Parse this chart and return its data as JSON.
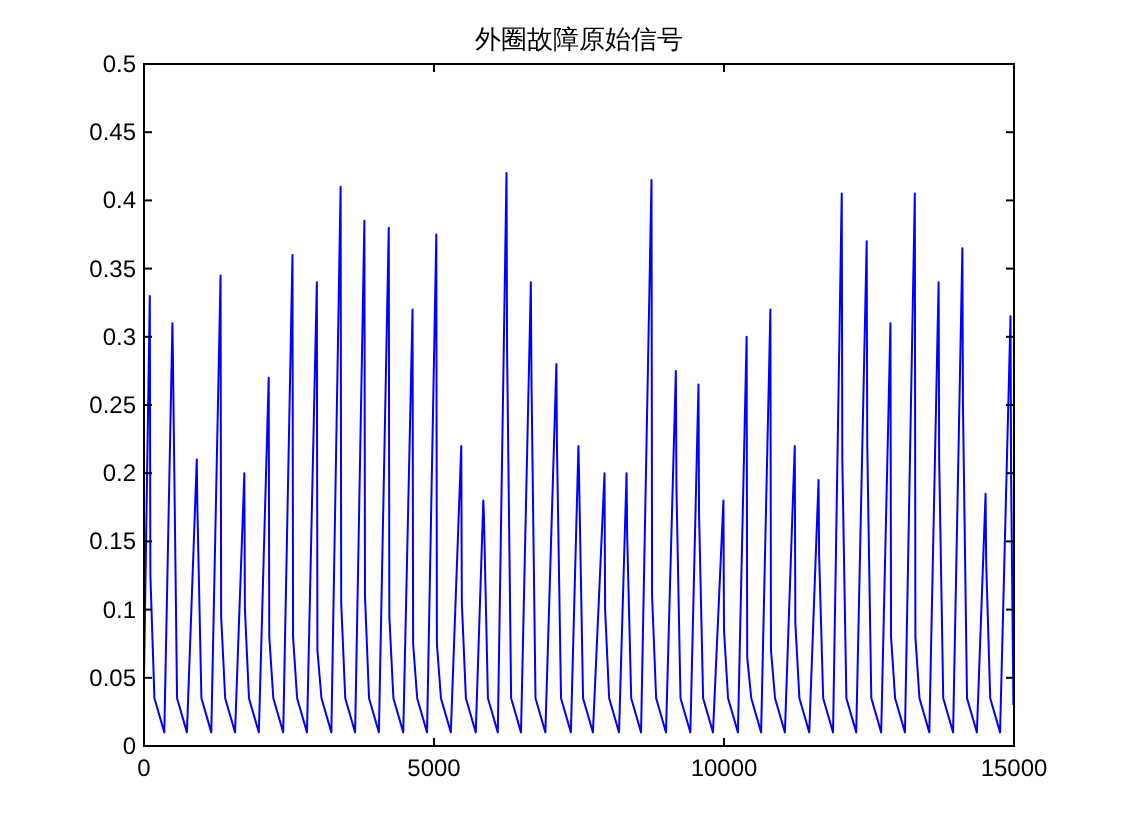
{
  "chart_data": {
    "type": "line",
    "title": "外圈故障原始信号",
    "x": [
      0,
      100,
      110,
      180,
      350,
      490,
      500,
      570,
      740,
      910,
      920,
      990,
      1160,
      1320,
      1330,
      1400,
      1570,
      1730,
      1740,
      1810,
      1980,
      2150,
      2160,
      2230,
      2400,
      2560,
      2570,
      2640,
      2810,
      2980,
      2990,
      3060,
      3230,
      3390,
      3400,
      3470,
      3640,
      3800,
      3810,
      3880,
      4050,
      4220,
      4230,
      4300,
      4470,
      4630,
      4640,
      4710,
      4880,
      5040,
      5050,
      5120,
      5290,
      5470,
      5480,
      5550,
      5720,
      5850,
      5860,
      5930,
      6100,
      6250,
      6260,
      6330,
      6500,
      6670,
      6680,
      6750,
      6920,
      7110,
      7120,
      7190,
      7360,
      7490,
      7500,
      7570,
      7740,
      7940,
      7950,
      8020,
      8190,
      8320,
      8330,
      8400,
      8570,
      8750,
      8760,
      8830,
      9000,
      9170,
      9180,
      9250,
      9420,
      9560,
      9570,
      9640,
      9810,
      9990,
      10000,
      10070,
      10240,
      10390,
      10400,
      10470,
      10640,
      10800,
      10810,
      10880,
      11050,
      11220,
      11230,
      11300,
      11470,
      11630,
      11640,
      11710,
      11880,
      12030,
      12040,
      12110,
      12280,
      12460,
      12470,
      12540,
      12710,
      12870,
      12880,
      12950,
      13120,
      13290,
      13300,
      13370,
      13540,
      13700,
      13710,
      13780,
      13950,
      14110,
      14120,
      14190,
      14360,
      14510,
      14520,
      14590,
      14760,
      14940,
      14950,
      14990
    ],
    "series": [
      {
        "color": "#0000ff",
        "values": [
          0.05,
          0.33,
          0.125,
          0.035,
          0.01,
          0.31,
          0.28,
          0.035,
          0.01,
          0.21,
          0.175,
          0.035,
          0.01,
          0.345,
          0.095,
          0.035,
          0.01,
          0.2,
          0.1,
          0.035,
          0.01,
          0.27,
          0.08,
          0.035,
          0.01,
          0.36,
          0.08,
          0.035,
          0.01,
          0.34,
          0.07,
          0.035,
          0.01,
          0.41,
          0.105,
          0.035,
          0.01,
          0.385,
          0.11,
          0.035,
          0.01,
          0.38,
          0.095,
          0.035,
          0.01,
          0.32,
          0.075,
          0.035,
          0.01,
          0.375,
          0.075,
          0.035,
          0.01,
          0.22,
          0.105,
          0.035,
          0.01,
          0.18,
          0.17,
          0.035,
          0.01,
          0.42,
          0.29,
          0.035,
          0.01,
          0.34,
          0.27,
          0.035,
          0.01,
          0.28,
          0.22,
          0.035,
          0.01,
          0.22,
          0.2,
          0.035,
          0.01,
          0.2,
          0.1,
          0.035,
          0.01,
          0.2,
          0.155,
          0.035,
          0.01,
          0.415,
          0.11,
          0.035,
          0.01,
          0.275,
          0.19,
          0.035,
          0.01,
          0.265,
          0.17,
          0.035,
          0.01,
          0.18,
          0.085,
          0.035,
          0.01,
          0.3,
          0.065,
          0.035,
          0.01,
          0.32,
          0.07,
          0.035,
          0.01,
          0.22,
          0.09,
          0.035,
          0.01,
          0.195,
          0.14,
          0.035,
          0.01,
          0.405,
          0.21,
          0.035,
          0.01,
          0.37,
          0.22,
          0.035,
          0.01,
          0.31,
          0.08,
          0.035,
          0.01,
          0.405,
          0.08,
          0.035,
          0.01,
          0.34,
          0.21,
          0.035,
          0.01,
          0.365,
          0.25,
          0.035,
          0.01,
          0.185,
          0.135,
          0.035,
          0.01,
          0.315,
          0.2,
          0.03
        ]
      }
    ],
    "xlim": [
      0,
      15000
    ],
    "ylim": [
      0,
      0.5
    ],
    "xticks": [
      0,
      5000,
      10000,
      15000
    ],
    "yticks": [
      0,
      0.05,
      0.1,
      0.15,
      0.2,
      0.25,
      0.3,
      0.35,
      0.4,
      0.45,
      0.5
    ]
  }
}
